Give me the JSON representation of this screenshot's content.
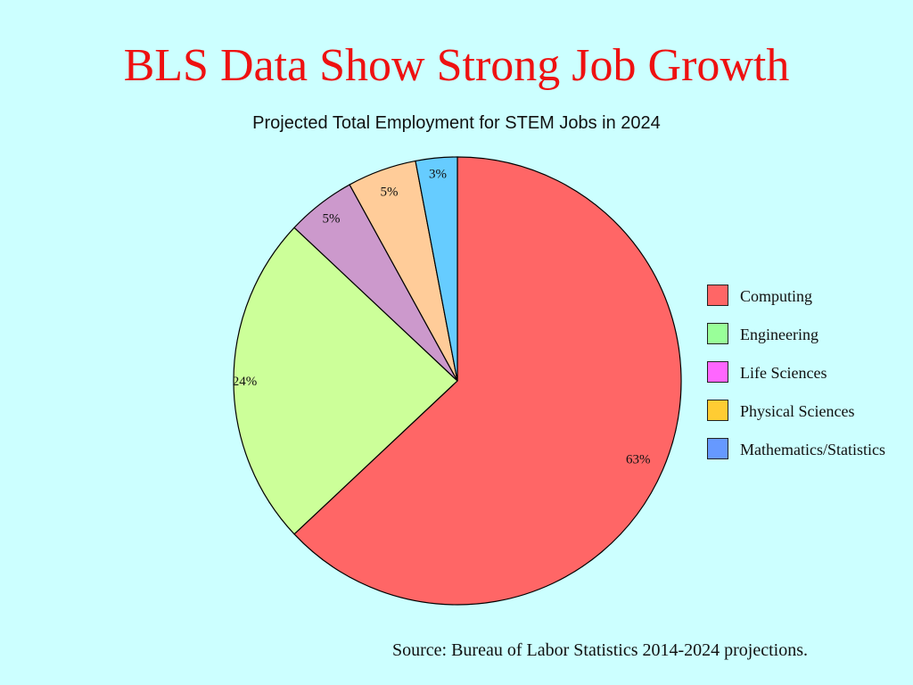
{
  "slide": {
    "title": "BLS Data Show Strong Job Growth",
    "source": "Source: Bureau of Labor Statistics 2014-2024 projections."
  },
  "chart_data": {
    "type": "pie",
    "title": "Projected Total Employment for STEM Jobs in 2024",
    "legend_placement": "right",
    "slices": [
      {
        "label": "Computing",
        "value": 63,
        "value_label": "63%",
        "color": "#ff6666",
        "legend_color": "#ff6666"
      },
      {
        "label": "Engineering",
        "value": 24,
        "value_label": "24%",
        "color": "#ccff99",
        "legend_color": "#99ff99"
      },
      {
        "label": "Life Sciences",
        "value": 5,
        "value_label": "5%",
        "color": "#cc99cc",
        "legend_color": "#ff66ff"
      },
      {
        "label": "Physical Sciences",
        "value": 5,
        "value_label": "5%",
        "color": "#ffcc99",
        "legend_color": "#ffcc33"
      },
      {
        "label": "Mathematics/Statistics",
        "value": 3,
        "value_label": "3%",
        "color": "#66ccff",
        "legend_color": "#6699ff"
      }
    ]
  }
}
